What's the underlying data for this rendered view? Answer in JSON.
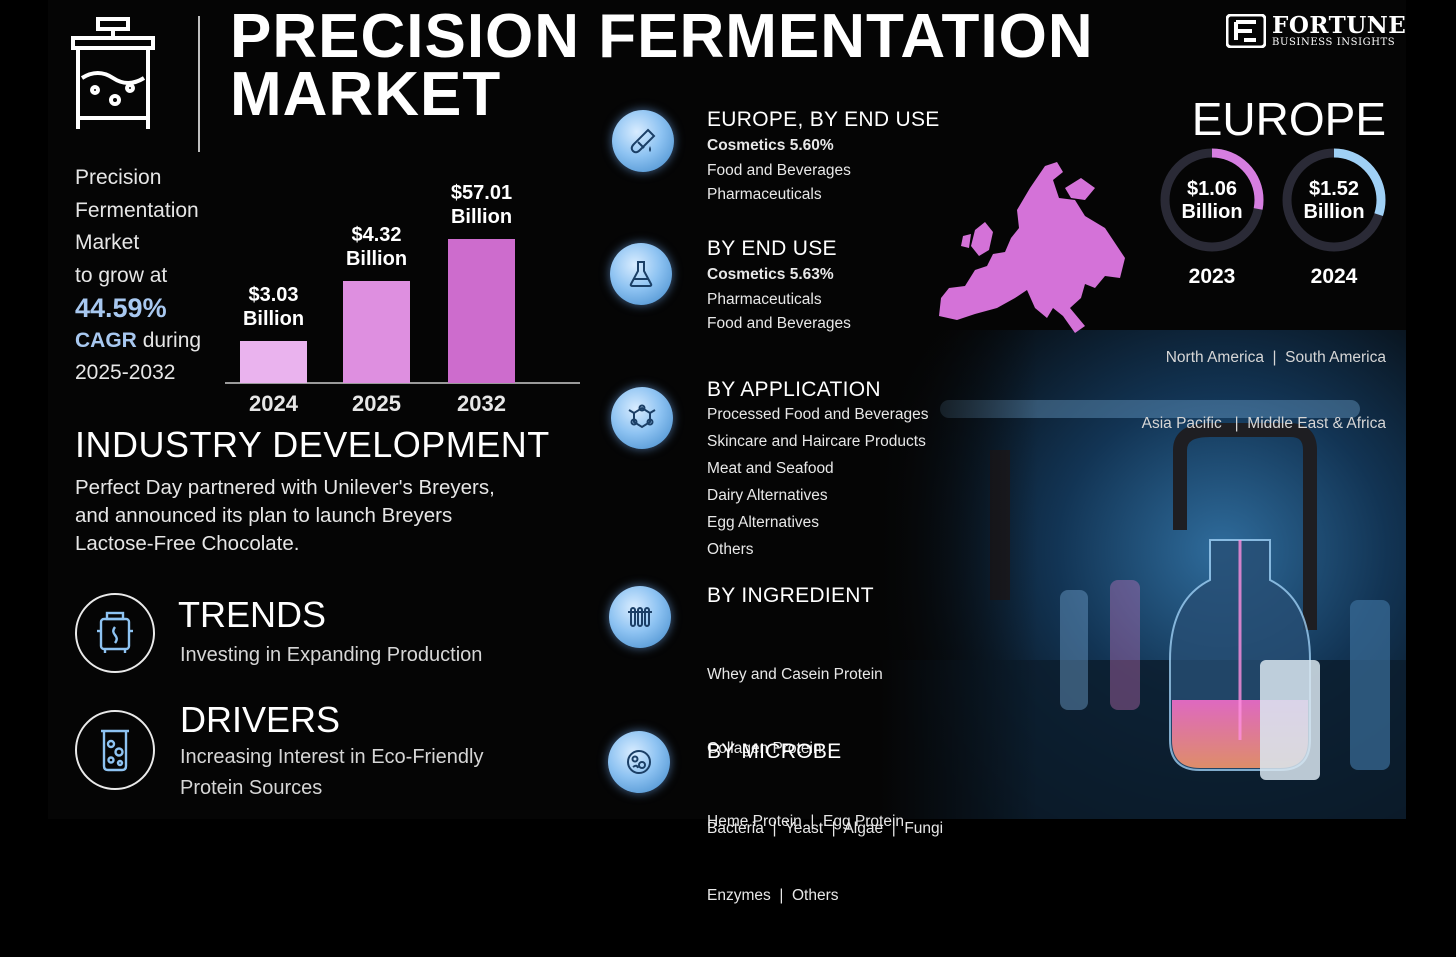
{
  "title_line1": "PRECISION FERMENTATION",
  "title_line2": "MARKET",
  "logo": {
    "name": "FORTUNE",
    "sub": "BUSINESS INSIGHTS"
  },
  "intro": {
    "line1": "Precision",
    "line2": "Fermentation",
    "line3": "Market",
    "line4": "to grow at",
    "cagr_value": "44.59%",
    "cagr_label": "CAGR",
    "during": "during",
    "period": "2025-2032"
  },
  "chart_data": {
    "type": "bar",
    "categories": [
      "2024",
      "2025",
      "2032"
    ],
    "values": [
      3.03,
      4.32,
      57.01
    ],
    "value_labels": [
      [
        "$3.03",
        "Billion"
      ],
      [
        "$4.32",
        "Billion"
      ],
      [
        "$57.01",
        "Billion"
      ]
    ],
    "colors": [
      "#eab3ee",
      "#de8fe0",
      "#cd6ccd"
    ],
    "title": "",
    "xlabel": "",
    "ylabel": ""
  },
  "industry": {
    "heading": "INDUSTRY DEVELOPMENT",
    "line1": "Perfect Day partnered with Unilever's Breyers,",
    "line2": "and announced  its plan to launch Breyers",
    "line3": "Lactose-Free Chocolate."
  },
  "trends": {
    "heading": "TRENDS",
    "text": "Investing in Expanding Production",
    "icon": "bioreactor-icon"
  },
  "drivers": {
    "heading": "DRIVERS",
    "line1": "Increasing Interest in Eco-Friendly",
    "line2": "Protein Sources",
    "icon": "beaker-icon"
  },
  "segments": [
    {
      "title": "EUROPE, BY END USE",
      "icon": "test-tube-icon",
      "items": [
        "Cosmetics 5.60%",
        "Food and Beverages",
        "Pharmaceuticals"
      ]
    },
    {
      "title": "BY END USE",
      "icon": "flask-icon",
      "items": [
        "Cosmetics 5.63%",
        "Pharmaceuticals",
        "Food and Beverages"
      ]
    },
    {
      "title": "BY APPLICATION",
      "icon": "molecule-icon",
      "items": [
        "Processed Food and Beverages",
        "Skincare and Haircare Products",
        "Meat and Seafood",
        "Dairy Alternatives",
        "Egg Alternatives",
        "Others"
      ]
    },
    {
      "title": "BY INGREDIENT",
      "icon": "test-tube-rack-icon",
      "items": [
        "Whey and Casein Protein",
        "Collagen Protein",
        "Heme Protein  |  Egg Protein",
        "Enzymes  |  Others"
      ]
    },
    {
      "title": "BY MICROBE",
      "icon": "petri-dish-icon",
      "items": [
        "Bacteria  |  Yeast  |  Algae  |  Fungi"
      ]
    }
  ],
  "europe": {
    "heading": "EUROPE",
    "donuts": [
      {
        "value": "$1.06",
        "unit": "Billion",
        "year": "2023",
        "fill": 0.28,
        "color": "#d67ee0"
      },
      {
        "value": "$1.52",
        "unit": "Billion",
        "year": "2024",
        "fill": 0.3,
        "color": "#9fd0f5"
      }
    ],
    "regions_line1": "North America  |  South America",
    "regions_line2": "Asia Pacific   |  Middle East & Africa"
  }
}
